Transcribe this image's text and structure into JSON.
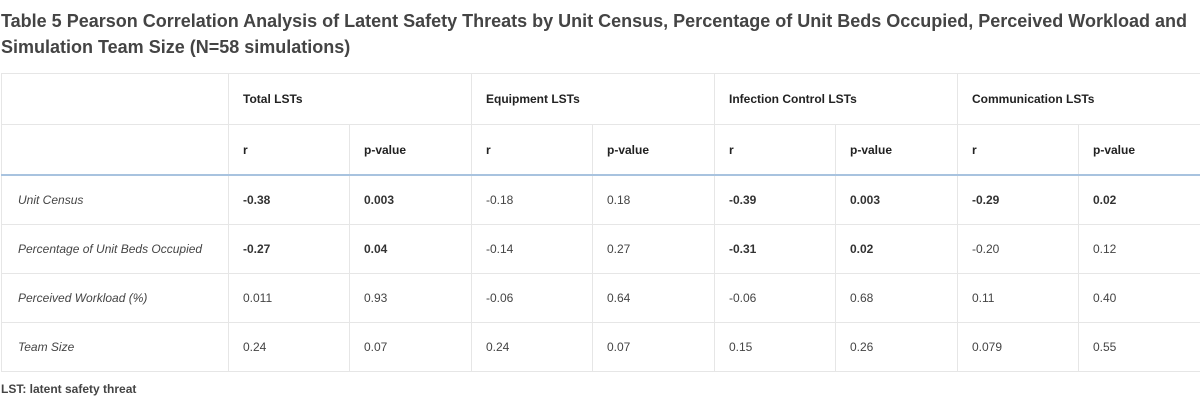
{
  "title": "Table 5  Pearson Correlation Analysis of Latent Safety Threats by Unit Census, Percentage of Unit Beds Occupied, Perceived Workload and Simulation Team Size (N=58 simulations)",
  "columns": {
    "groups": [
      "Total LSTs",
      "Equipment LSTs",
      "Infection Control LSTs",
      "Communication LSTs"
    ],
    "sub": [
      "r",
      "p-value",
      "r",
      "p-value",
      "r",
      "p-value",
      "r",
      "p-value"
    ]
  },
  "rows": [
    {
      "label": "Unit Census",
      "cells": [
        {
          "v": "-0.38",
          "bold": true
        },
        {
          "v": "0.003",
          "bold": true
        },
        {
          "v": "-0.18",
          "bold": false
        },
        {
          "v": "0.18",
          "bold": false
        },
        {
          "v": "-0.39",
          "bold": true
        },
        {
          "v": "0.003",
          "bold": true
        },
        {
          "v": "-0.29",
          "bold": true
        },
        {
          "v": "0.02",
          "bold": true
        }
      ]
    },
    {
      "label": "Percentage of Unit Beds Occupied",
      "cells": [
        {
          "v": "-0.27",
          "bold": true
        },
        {
          "v": "0.04",
          "bold": true
        },
        {
          "v": "-0.14",
          "bold": false
        },
        {
          "v": "0.27",
          "bold": false
        },
        {
          "v": "-0.31",
          "bold": true
        },
        {
          "v": "0.02",
          "bold": true
        },
        {
          "v": "-0.20",
          "bold": false
        },
        {
          "v": "0.12",
          "bold": false
        }
      ]
    },
    {
      "label": "Perceived Workload (%)",
      "cells": [
        {
          "v": "0.011",
          "bold": false
        },
        {
          "v": "0.93",
          "bold": false
        },
        {
          "v": "-0.06",
          "bold": false
        },
        {
          "v": "0.64",
          "bold": false
        },
        {
          "v": "-0.06",
          "bold": false
        },
        {
          "v": "0.68",
          "bold": false
        },
        {
          "v": "0.11",
          "bold": false
        },
        {
          "v": "0.40",
          "bold": false
        }
      ]
    },
    {
      "label": "Team Size",
      "cells": [
        {
          "v": "0.24",
          "bold": false
        },
        {
          "v": "0.07",
          "bold": false
        },
        {
          "v": "0.24",
          "bold": false
        },
        {
          "v": "0.07",
          "bold": false
        },
        {
          "v": "0.15",
          "bold": false
        },
        {
          "v": "0.26",
          "bold": false
        },
        {
          "v": "0.079",
          "bold": false
        },
        {
          "v": "0.55",
          "bold": false
        }
      ]
    }
  ],
  "footnote": "LST: latent safety threat"
}
